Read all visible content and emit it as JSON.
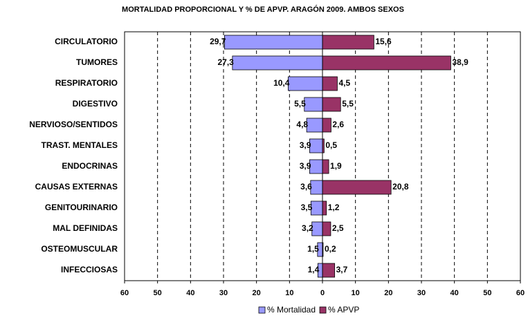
{
  "chart_data": {
    "type": "butterfly",
    "title": "MORTALIDAD PROPORCIONAL Y % DE APVP. ARAGÓN 2009. AMBOS SEXOS",
    "categories": [
      "CIRCULATORIO",
      "TUMORES",
      "RESPIRATORIO",
      "DIGESTIVO",
      "NERVIOSO/SENTIDOS",
      "TRAST. MENTALES",
      "ENDOCRINAS",
      "CAUSAS EXTERNAS",
      "GENITOURINARIO",
      "MAL DEFINIDAS",
      "OSTEOMUSCULAR",
      "INFECCIOSAS"
    ],
    "series": [
      {
        "name": "% Mortalidad",
        "color": "#9999ff",
        "side": "left",
        "values": [
          29.7,
          27.3,
          10.4,
          5.5,
          4.8,
          3.9,
          3.9,
          3.6,
          3.5,
          3.2,
          1.5,
          1.4
        ],
        "value_labels": [
          "29,7",
          "27,3",
          "10,4",
          "5,5",
          "4,8",
          "3,9",
          "3,9",
          "3,6",
          "3,5",
          "3,2",
          "1,5",
          "1,4"
        ]
      },
      {
        "name": "% APVP",
        "color": "#993366",
        "side": "right",
        "values": [
          15.6,
          38.9,
          4.5,
          5.5,
          2.6,
          0.5,
          1.9,
          20.8,
          1.2,
          2.5,
          0.2,
          3.7
        ],
        "value_labels": [
          "15,6",
          "38,9",
          "4,5",
          "5,5",
          "2,6",
          "0,5",
          "1,9",
          "20,8",
          "1,2",
          "2,5",
          "0,2",
          "3,7"
        ]
      }
    ],
    "xlim": [
      -60,
      60
    ],
    "xticks": [
      {
        "value": -60,
        "label": "60"
      },
      {
        "value": -50,
        "label": "50"
      },
      {
        "value": -40,
        "label": "40"
      },
      {
        "value": -30,
        "label": "30"
      },
      {
        "value": -20,
        "label": "20"
      },
      {
        "value": -10,
        "label": "10"
      },
      0,
      10,
      20,
      30,
      40,
      50,
      60
    ],
    "grid": true,
    "legend": "bottom"
  }
}
